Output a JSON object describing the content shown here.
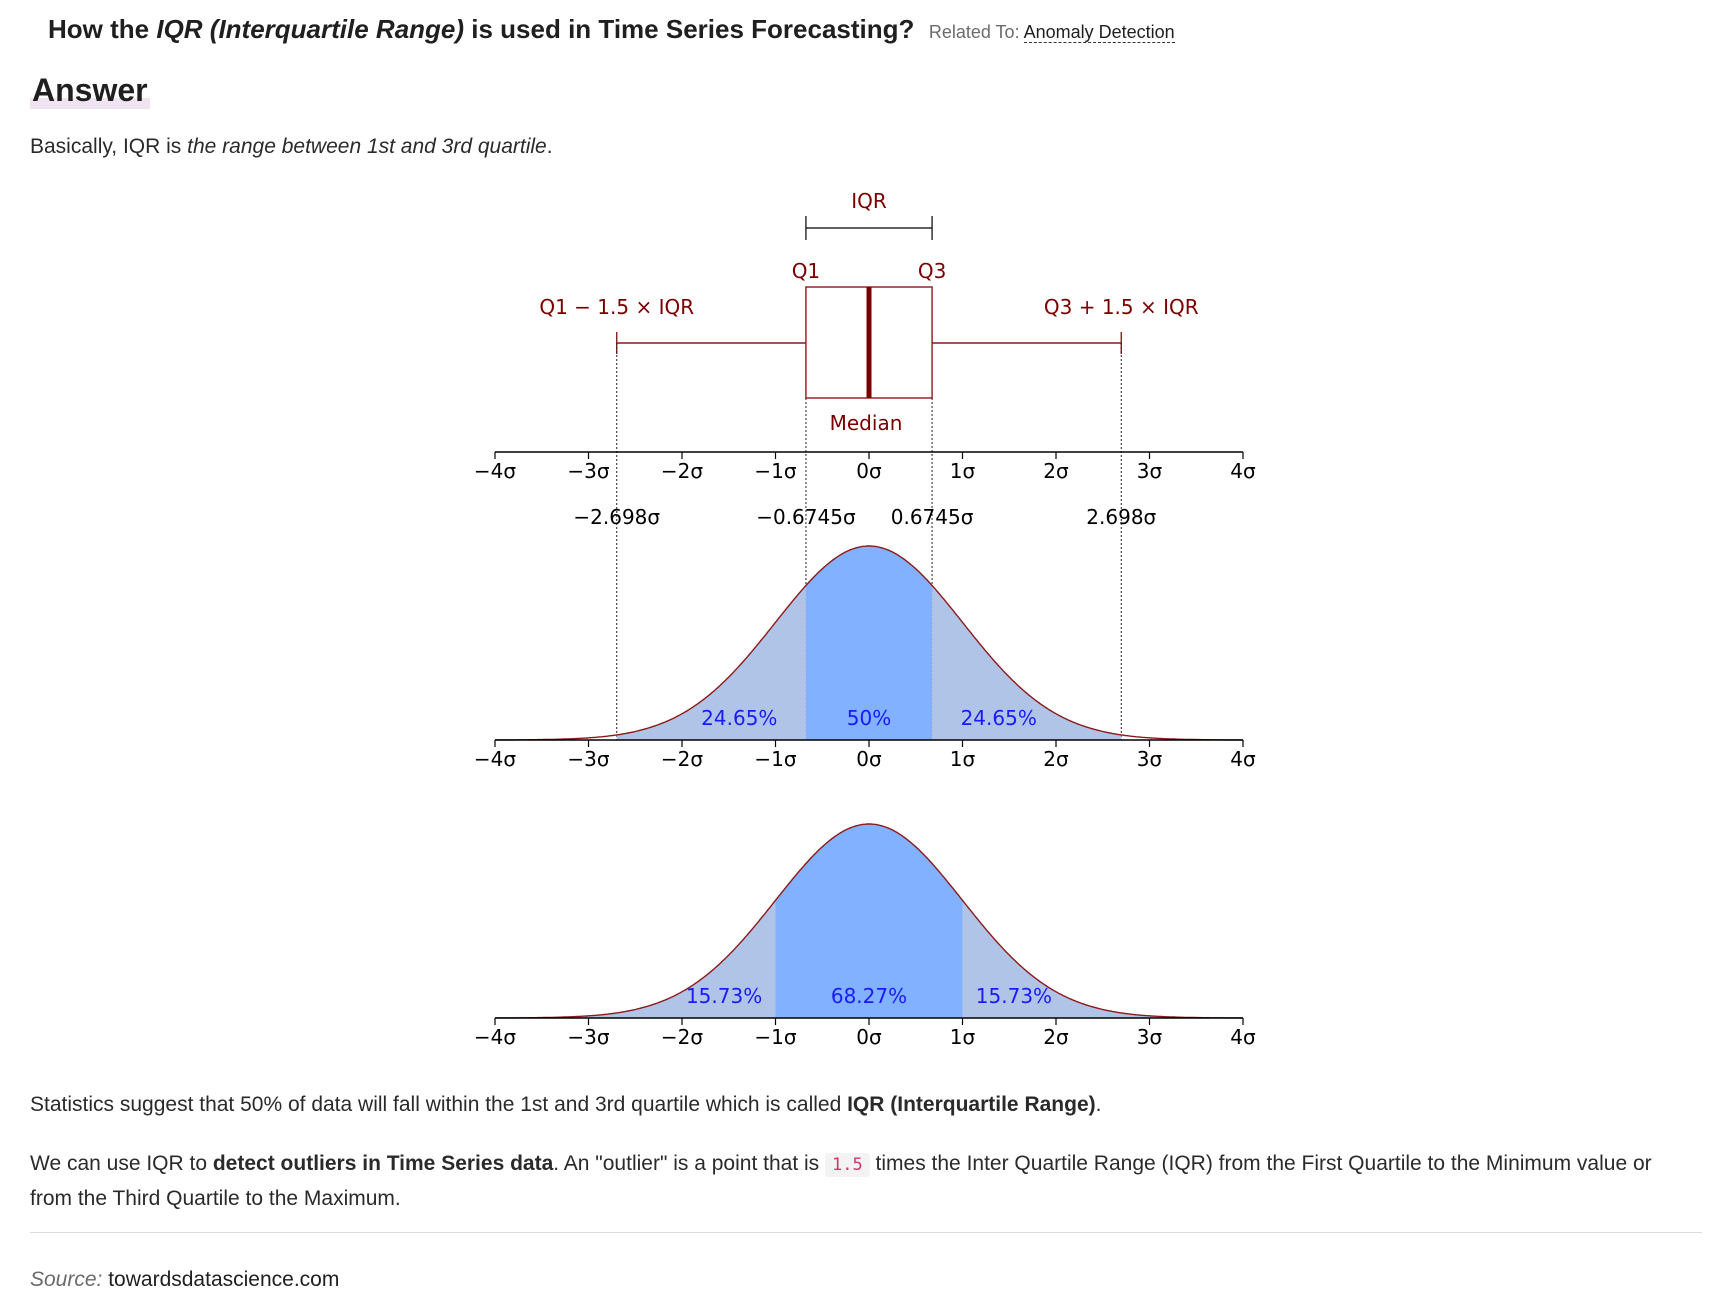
{
  "question": {
    "prefix": "How the ",
    "term": "IQR (Interquartile Range)",
    "suffix": " is used in Time Series Forecasting?",
    "related_label": "Related To:",
    "related_link": "Anomaly Detection"
  },
  "answer_heading": "Answer",
  "intro": {
    "text": "Basically, IQR is ",
    "emphasis": "the range between 1st and 3rd quartile",
    "end": "."
  },
  "paragraph2": {
    "text": "Statistics suggest that 50% of data will fall within the 1st and 3rd quartile which is called ",
    "bold": "IQR (Interquartile Range)",
    "end": "."
  },
  "paragraph3": {
    "a": "We can use IQR to ",
    "bold": "detect outliers in Time Series data",
    "b": ". An \"outlier\" is a point that is ",
    "code": "1.5",
    "c": " times the Inter Quartile Range (IQR) from the First Quartile to the Minimum value or from the Third Quartile to the Maximum."
  },
  "source": {
    "label": "Source:",
    "value": "towardsdatascience.com"
  },
  "colors": {
    "dark_red": "#7a0000",
    "curve_red": "#8b1a1a",
    "fill_light": "#b0c4e8",
    "fill_mid": "#82b1ff",
    "label_blue": "#1a1aff"
  },
  "chart_data": {
    "type": "area",
    "x_domain": [
      -4,
      4
    ],
    "tick_values": [
      -4,
      -3,
      -2,
      -1,
      0,
      1,
      2,
      3,
      4
    ],
    "tick_labels": [
      "−4σ",
      "−3σ",
      "−2σ",
      "−1σ",
      "0σ",
      "1σ",
      "2σ",
      "3σ",
      "4σ"
    ],
    "boxplot": {
      "q1": -0.6745,
      "median": 0,
      "q3": 0.6745,
      "lower_whisker": -2.698,
      "upper_whisker": 2.698,
      "labels": {
        "iqr": "IQR",
        "q1": "Q1",
        "q3": "Q3",
        "lower": "Q1 − 1.5 × IQR",
        "upper": "Q3 + 1.5 × IQR",
        "median": "Median"
      },
      "value_labels": [
        "−2.698σ",
        "−0.6745σ",
        "0.6745σ",
        "2.698σ"
      ]
    },
    "distributions": [
      {
        "bounds": [
          -0.6745,
          0.6745
        ],
        "outer": [
          -2.698,
          2.698
        ],
        "labels": [
          "24.65%",
          "50%",
          "24.65%"
        ]
      },
      {
        "bounds": [
          -1,
          1
        ],
        "outer": [
          -4,
          4
        ],
        "labels": [
          "15.73%",
          "68.27%",
          "15.73%"
        ]
      }
    ]
  }
}
